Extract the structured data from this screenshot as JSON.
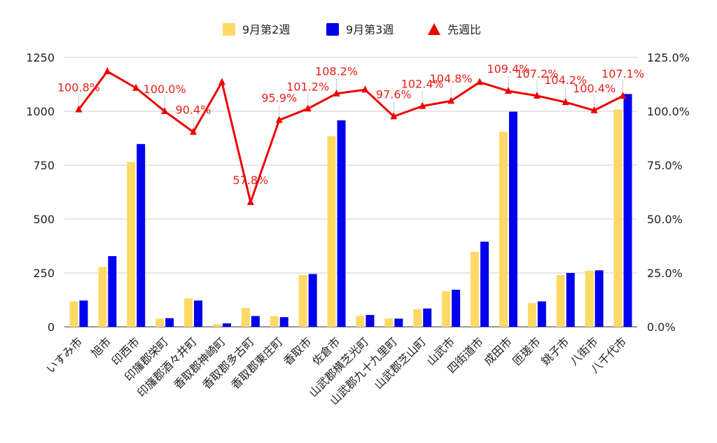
{
  "chart_data": {
    "type": "bar+line",
    "categories": [
      "いすみ市",
      "旭市",
      "印西市",
      "印旛郡栄町",
      "印旛郡酒々井町",
      "香取郡神崎町",
      "香取郡多古町",
      "香取郡東庄町",
      "香取市",
      "佐倉市",
      "山武郡横芝光町",
      "山武郡九十九里町",
      "山武郡芝山町",
      "山武市",
      "四街道市",
      "成田市",
      "匝瑳市",
      "銚子市",
      "八街市",
      "八千代市"
    ],
    "series": [
      {
        "name": "9月第2週",
        "axis": "left",
        "kind": "bar",
        "color": "#ffd966",
        "values": [
          118,
          278,
          765,
          38,
          132,
          12,
          88,
          50,
          240,
          885,
          50,
          38,
          82,
          165,
          348,
          905,
          110,
          240,
          260,
          1008
        ]
      },
      {
        "name": "9月第3週",
        "axis": "left",
        "kind": "bar",
        "color": "#0000ee",
        "values": [
          122,
          328,
          848,
          40,
          122,
          16,
          50,
          45,
          245,
          958,
          55,
          38,
          85,
          172,
          395,
          998,
          118,
          250,
          262,
          1080
        ]
      },
      {
        "name": "先週比",
        "axis": "right",
        "kind": "line",
        "color": "#ee0000",
        "values": [
          100.8,
          118.5,
          110.8,
          100.0,
          90.4,
          113.5,
          57.8,
          95.9,
          101.2,
          108.2,
          110.0,
          97.6,
          102.4,
          104.8,
          113.5,
          109.4,
          107.2,
          104.2,
          100.4,
          107.1
        ]
      }
    ],
    "point_labels": [
      {
        "index": 0,
        "text": "100.8%"
      },
      {
        "index": 3,
        "text": "100.0%"
      },
      {
        "index": 4,
        "text": "90.4%"
      },
      {
        "index": 6,
        "text": "57.8%"
      },
      {
        "index": 7,
        "text": "95.9%"
      },
      {
        "index": 8,
        "text": "101.2%"
      },
      {
        "index": 9,
        "text": "108.2%"
      },
      {
        "index": 11,
        "text": "97.6%"
      },
      {
        "index": 12,
        "text": "102.4%"
      },
      {
        "index": 13,
        "text": "104.8%"
      },
      {
        "index": 15,
        "text": "109.4%"
      },
      {
        "index": 16,
        "text": "107.2%"
      },
      {
        "index": 17,
        "text": "104.2%"
      },
      {
        "index": 18,
        "text": "100.4%"
      },
      {
        "index": 19,
        "text": "107.1%"
      }
    ],
    "y_left": {
      "min": 0,
      "max": 1250,
      "ticks": [
        "0",
        "250",
        "500",
        "750",
        "1000",
        "1250"
      ]
    },
    "y_right": {
      "min": 0,
      "max": 125,
      "ticks": [
        "0.0%",
        "25.0%",
        "50.0%",
        "75.0%",
        "100.0%",
        "125.0%"
      ]
    },
    "grid": true,
    "legend_position": "top-center"
  }
}
